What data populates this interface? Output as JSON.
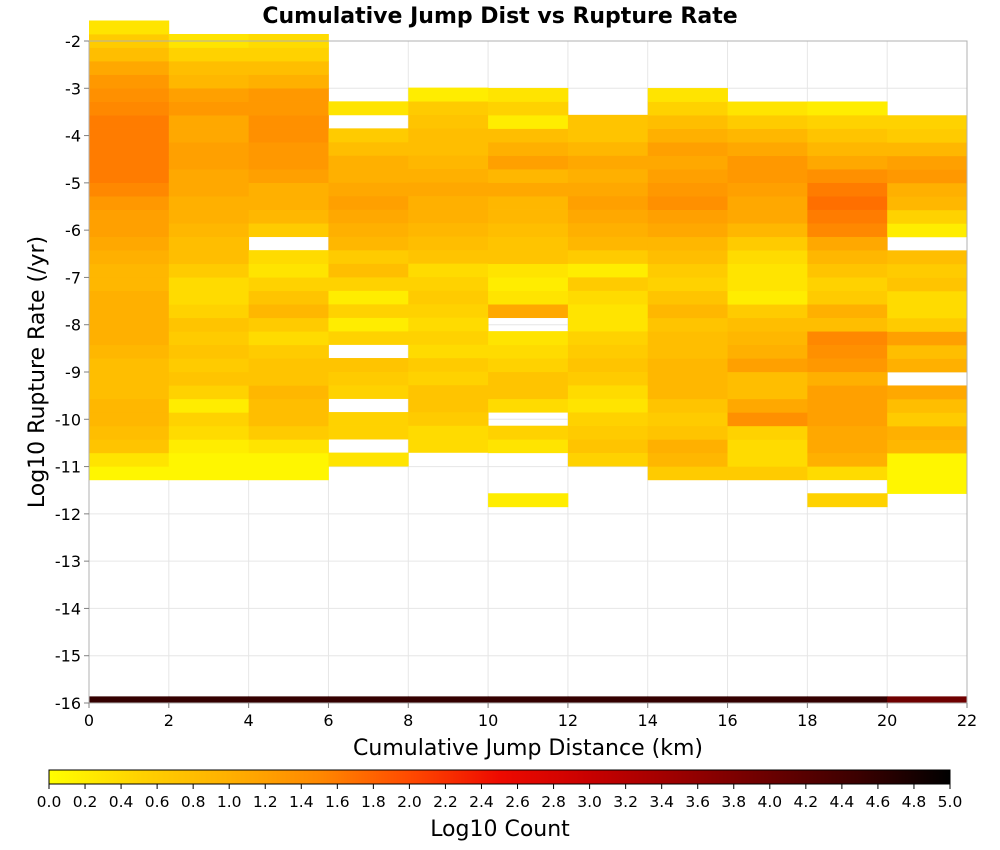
{
  "chart_data": {
    "type": "heatmap",
    "title": "Cumulative Jump Dist vs Rupture Rate",
    "xlabel": "Cumulative Jump Distance (km)",
    "ylabel": "Log10 Rupture Rate (/yr)",
    "xlim": [
      0,
      22
    ],
    "ylim": [
      -16,
      -2
    ],
    "x_ticks": [
      "0",
      "2",
      "4",
      "6",
      "8",
      "10",
      "12",
      "14",
      "16",
      "18",
      "20",
      "22"
    ],
    "y_ticks": [
      "-2",
      "-3",
      "-4",
      "-5",
      "-6",
      "-7",
      "-8",
      "-9",
      "-10",
      "-11",
      "-12",
      "-13",
      "-14",
      "-15",
      "-16"
    ],
    "grid": true,
    "x_bin_width_km": 2,
    "y_bin_height": 0.2857,
    "colorbar": {
      "label": "Log10 Count",
      "range": [
        0,
        5
      ],
      "ticks": [
        "0.0",
        "0.2",
        "0.4",
        "0.6",
        "0.8",
        "1.0",
        "1.2",
        "1.4",
        "1.6",
        "1.8",
        "2.0",
        "2.2",
        "2.4",
        "2.6",
        "2.8",
        "3.0",
        "3.2",
        "3.4",
        "3.6",
        "3.8",
        "4.0",
        "4.2",
        "4.4",
        "4.6",
        "4.8",
        "5.0"
      ]
    },
    "columns": [
      {
        "x_start": 0,
        "y_start": -11.28,
        "values": [
          0.1,
          0.3,
          0.7,
          0.8,
          0.9,
          0.9,
          0.8,
          0.8,
          0.8,
          0.9,
          1.0,
          1.0,
          1.0,
          1.0,
          0.9,
          0.9,
          1.0,
          1.1,
          1.2,
          1.2,
          1.3,
          1.5,
          1.6,
          1.6,
          1.6,
          1.6,
          1.6,
          1.5,
          1.4,
          1.3,
          1.1,
          0.8,
          0.6,
          0.3
        ]
      },
      {
        "x_start": 2,
        "y_start": -11.28,
        "values": [
          0.1,
          0.1,
          0.2,
          0.4,
          0.5,
          0.2,
          0.5,
          0.7,
          0.6,
          0.7,
          0.6,
          0.7,
          0.5,
          0.4,
          0.4,
          0.6,
          0.8,
          0.8,
          0.9,
          1.0,
          1.0,
          1.1,
          1.1,
          1.2,
          1.2,
          1.1,
          1.1,
          1.3,
          1.2,
          0.9,
          0.8,
          0.5,
          0.3
        ]
      },
      {
        "x_start": 4,
        "y_start": -11.28,
        "values": [
          0.1,
          0.1,
          0.3,
          0.6,
          0.8,
          0.8,
          0.9,
          0.7,
          0.7,
          0.6,
          0.4,
          0.6,
          0.9,
          0.7,
          0.5,
          0.3,
          0.4,
          null,
          0.6,
          0.9,
          1.0,
          1.0,
          1.2,
          1.3,
          1.3,
          1.4,
          1.4,
          1.3,
          1.3,
          1.0,
          0.8,
          0.5,
          0.4
        ]
      },
      {
        "x_start": 6,
        "y_start": -10.99,
        "values": [
          0.3,
          null,
          0.5,
          0.5,
          null,
          0.5,
          0.6,
          0.7,
          null,
          0.5,
          0.2,
          0.5,
          0.2,
          0.5,
          0.8,
          0.6,
          0.9,
          1.0,
          1.1,
          1.2,
          1.1,
          1.0,
          1.0,
          0.8,
          0.6,
          null,
          0.3
        ]
      },
      {
        "x_start": 8,
        "y_start": -10.7,
        "values": [
          0.4,
          0.4,
          0.6,
          0.7,
          0.7,
          0.5,
          0.6,
          0.4,
          0.5,
          0.4,
          0.5,
          0.6,
          0.5,
          0.4,
          0.7,
          0.8,
          0.9,
          1.0,
          1.0,
          1.1,
          1.0,
          0.9,
          0.8,
          0.8,
          0.7,
          0.6,
          0.2
        ]
      },
      {
        "x_start": 10,
        "y_start": -11.85,
        "values": [
          0.2,
          null,
          null,
          null,
          0.3,
          0.5,
          null,
          0.4,
          0.7,
          0.7,
          0.5,
          0.4,
          0.3,
          null,
          1.1,
          0.3,
          0.2,
          0.3,
          0.7,
          0.7,
          0.8,
          0.9,
          0.9,
          1.1,
          0.9,
          1.2,
          1.0,
          0.8,
          0.2,
          0.5,
          0.3
        ]
      },
      {
        "x_start": 12,
        "y_start": -10.99,
        "values": [
          0.5,
          0.7,
          0.6,
          0.5,
          0.3,
          0.4,
          0.6,
          0.7,
          0.6,
          0.5,
          0.3,
          0.3,
          0.4,
          0.6,
          0.2,
          0.6,
          0.9,
          1.0,
          1.1,
          1.2,
          1.1,
          1.0,
          1.1,
          0.9,
          0.7,
          0.7
        ]
      },
      {
        "x_start": 14,
        "y_start": -11.28,
        "values": [
          0.6,
          0.9,
          1.0,
          0.7,
          0.6,
          0.7,
          0.9,
          0.9,
          0.9,
          0.8,
          0.8,
          0.7,
          0.9,
          0.7,
          0.5,
          0.6,
          0.8,
          0.9,
          1.1,
          1.2,
          1.4,
          1.3,
          1.2,
          1.1,
          1.2,
          1.0,
          0.8,
          0.5,
          0.3
        ]
      },
      {
        "x_start": 16,
        "y_start": -11.28,
        "values": [
          0.6,
          0.4,
          0.4,
          0.5,
          1.4,
          1.1,
          0.8,
          0.8,
          1.2,
          1.0,
          0.9,
          0.8,
          0.6,
          0.2,
          0.3,
          0.3,
          0.4,
          0.6,
          0.9,
          1.1,
          1.1,
          1.2,
          1.3,
          1.3,
          1.1,
          0.9,
          0.6,
          0.3
        ]
      },
      {
        "x_start": 18,
        "y_start": -11.85,
        "values": [
          0.5,
          null,
          0.4,
          1.0,
          1.1,
          1.1,
          1.2,
          1.2,
          1.2,
          1.0,
          1.3,
          1.4,
          1.5,
          0.8,
          1.0,
          0.6,
          0.5,
          0.7,
          0.9,
          1.1,
          1.5,
          1.6,
          1.7,
          1.6,
          1.4,
          1.1,
          0.9,
          0.7,
          0.5,
          0.2
        ]
      },
      {
        "x_start": 20,
        "y_start": -11.57,
        "values": [
          0.1,
          0.1,
          0.1,
          0.9,
          1.0,
          0.6,
          0.8,
          1.1,
          null,
          1.0,
          0.8,
          1.2,
          0.6,
          0.4,
          0.4,
          0.7,
          0.6,
          0.8,
          null,
          0.2,
          0.5,
          0.9,
          1.0,
          1.3,
          1.2,
          0.9,
          0.6,
          0.5
        ]
      }
    ],
    "bottom_row": {
      "y_start": -16.0,
      "y_end": -15.86,
      "values": [
        4.55,
        4.55,
        4.55,
        4.55,
        4.55,
        4.55,
        4.55,
        4.55,
        4.55,
        4.55,
        3.95
      ]
    }
  }
}
